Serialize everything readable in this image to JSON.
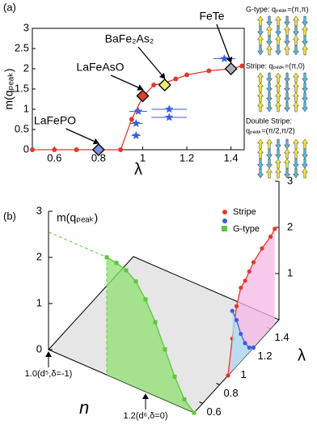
{
  "chart_data": [
    {
      "type": "line",
      "label": "(a)",
      "xlabel": "λ",
      "ylabel": "m(qₚₑₐₖ)",
      "xlim": [
        0.5,
        1.46
      ],
      "xticks": [
        0.6,
        0.8,
        1,
        1.2,
        1.4
      ],
      "ylim": [
        0,
        3
      ],
      "yticks": [
        0,
        0.5,
        1,
        1.5,
        2,
        2.5,
        3
      ],
      "series": [
        {
          "color": "#e03a2a",
          "marker": "circle",
          "x": [
            0.5,
            0.6,
            0.7,
            0.8,
            0.9,
            0.95,
            1.0,
            1.05,
            1.1,
            1.15,
            1.2,
            1.3,
            1.4,
            1.45
          ],
          "values": [
            0,
            0,
            0,
            0,
            0,
            0.75,
            1.3,
            1.6,
            1.65,
            1.75,
            1.85,
            1.95,
            2.0,
            2.07
          ]
        },
        {
          "color": "#3a5fe0",
          "marker": "star",
          "x": [
            0.97,
            0.97,
            0.98,
            1.12,
            1.12,
            1.37
          ],
          "values": [
            0.35,
            0.65,
            0.95,
            0.8,
            1.0,
            2.25
          ],
          "xerr": [
            0.02,
            0.03,
            0.04,
            0.08,
            0.08,
            0.05
          ]
        }
      ],
      "materials": [
        {
          "label": "LaFePO",
          "x": 0.8,
          "value": 0,
          "color": "#7f8fd8"
        },
        {
          "label": "LaFeAsO",
          "x": 1.0,
          "value": 1.33,
          "color": "#d8422a"
        },
        {
          "label": "BaFe₂As₂",
          "x": 1.1,
          "value": 1.6,
          "color": "#eeea70"
        },
        {
          "label": "FeTe",
          "x": 1.4,
          "value": 2.0,
          "color": "#a9adb8"
        }
      ],
      "spin_orders": [
        {
          "lines": [
            "G-type: qₚₑₐₖ=(π,π)"
          ]
        },
        {
          "lines": [
            "Stripe: qₚₑₐₖ=(π,0)"
          ]
        },
        {
          "lines": [
            "Double Stripe:",
            "qₚₑₐₖ=(π/2,π/2)"
          ]
        }
      ]
    },
    {
      "type": "3d",
      "label": "(b)",
      "zlabel": "m(qₚₑₐₖ)",
      "nlabel": "n",
      "llabel": "λ",
      "nlim": [
        1.0,
        1.3
      ],
      "llim": [
        0.5,
        1.5
      ],
      "zlim": [
        0,
        3
      ],
      "zticks": [
        0,
        1,
        2,
        3
      ],
      "z2ticks": [
        1,
        2,
        3
      ],
      "nticks": [
        {
          "value": 1.0,
          "label": "1.0(d⁵,δ=-1)"
        },
        {
          "value": 1.2,
          "label": "1.2(d⁶,δ=0)"
        }
      ],
      "lticks": [
        0.6,
        0.8,
        1,
        1.2,
        1.4
      ],
      "series": [
        {
          "name": "Stripe",
          "color": "#e03a2a",
          "x_axis": "λ",
          "fill": "#f4b8e4",
          "x": [
            0.9,
            0.95,
            1.0,
            1.05,
            1.1,
            1.15,
            1.2,
            1.3,
            1.4,
            1.45
          ],
          "values": [
            0,
            0.7,
            1.3,
            1.6,
            1.65,
            1.75,
            1.85,
            1.95,
            2.0,
            2.07
          ]
        },
        {
          "color": "#3a5fe0",
          "x_axis": "λ",
          "fill": "#a8e4f0",
          "x": [
            0.95,
            1.0,
            1.05,
            1.1,
            1.15,
            1.2
          ],
          "values": [
            1.3,
            1.0,
            0.6,
            0.3,
            0.1,
            0
          ]
        },
        {
          "name": "G-type",
          "color": "#5cc83a",
          "x_axis": "n",
          "fill": "#8ee070",
          "x": [
            1.12,
            1.14,
            1.16,
            1.18,
            1.2,
            1.22,
            1.24,
            1.26,
            1.28,
            1.3
          ],
          "values": [
            2.55,
            2.52,
            2.45,
            2.3,
            2.0,
            1.6,
            1.1,
            0.6,
            0.2,
            0
          ]
        }
      ]
    }
  ]
}
